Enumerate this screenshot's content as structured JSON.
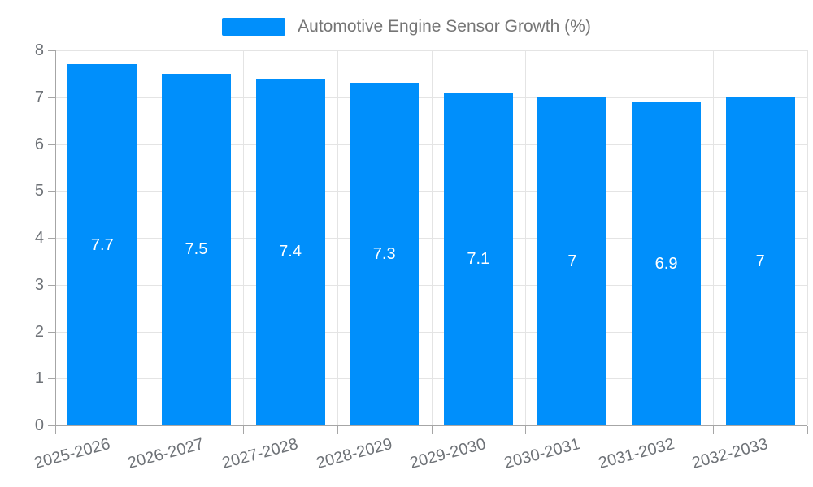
{
  "chart_data": {
    "type": "bar",
    "title": "Automotive Engine Sensor Growth (%)",
    "categories": [
      "2025-2026",
      "2026-2027",
      "2027-2028",
      "2028-2029",
      "2029-2030",
      "2030-2031",
      "2031-2032",
      "2032-2033"
    ],
    "series": [
      {
        "name": "Automotive Engine Sensor Growth (%)",
        "values": [
          7.7,
          7.5,
          7.4,
          7.3,
          7.1,
          7,
          6.9,
          7
        ]
      }
    ],
    "data_labels_shown": true,
    "xlabel": "",
    "ylabel": "",
    "ylim": [
      0,
      8
    ],
    "ytick_step": 1,
    "ytick_labels": [
      "0",
      "1",
      "2",
      "3",
      "4",
      "5",
      "6",
      "7",
      "8"
    ],
    "grid": true,
    "legend_position": "top",
    "colors": {
      "bar": "#008FFB",
      "grid": "#e4e4e4",
      "axis": "#a6a6a6",
      "axis_label": "#6e7277",
      "legend_label": "#757575",
      "data_label": "#ffffff",
      "background": "#ffffff"
    }
  }
}
